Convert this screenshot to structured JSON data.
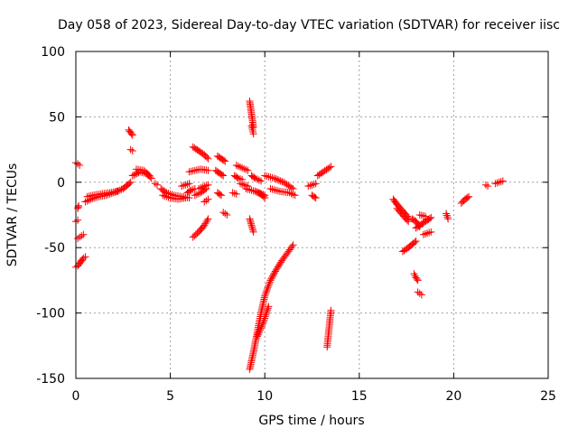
{
  "chart_data": {
    "type": "scatter",
    "title": "Day 058 of 2023, Sidereal Day-to-day VTEC variation (SDTVAR) for receiver iisc",
    "xlabel": "GPS time / hours",
    "ylabel": "SDTVAR / TECUs",
    "xlim": [
      0,
      25
    ],
    "ylim": [
      -150,
      100
    ],
    "xticks": [
      0,
      5,
      10,
      15,
      20,
      25
    ],
    "yticks": [
      -150,
      -100,
      -50,
      0,
      50,
      100
    ],
    "grid": true,
    "legend": "none",
    "marker": "+",
    "color": "#ff0000",
    "segments": [
      {
        "x": [
          0.0,
          0.1,
          0.2
        ],
        "y": [
          15,
          14,
          13
        ]
      },
      {
        "x": [
          0.0,
          0.1,
          0.2,
          0.3
        ],
        "y": [
          -65,
          -64,
          -62,
          -60
        ]
      },
      {
        "x": [
          0.1,
          0.2,
          0.3,
          0.4
        ],
        "y": [
          -43,
          -42,
          -41,
          -40
        ]
      },
      {
        "x": [
          0.0,
          0.1
        ],
        "y": [
          -30,
          -29
        ]
      },
      {
        "x": [
          0.1,
          0.15
        ],
        "y": [
          -20,
          -18
        ]
      },
      {
        "x": [
          0.3,
          0.4,
          0.5
        ],
        "y": [
          -60,
          -58,
          -57
        ]
      },
      {
        "x": [
          0.5,
          0.8,
          1.2,
          1.6,
          2.0,
          2.5,
          2.9
        ],
        "y": [
          -15,
          -13,
          -11,
          -10,
          -8,
          -5,
          0
        ]
      },
      {
        "x": [
          0.6,
          0.9,
          1.3,
          1.8,
          2.2
        ],
        "y": [
          -11,
          -10,
          -9,
          -8,
          -7
        ]
      },
      {
        "x": [
          2.8,
          2.9,
          3.0
        ],
        "y": [
          40,
          38,
          36
        ]
      },
      {
        "x": [
          2.9,
          3.0
        ],
        "y": [
          25,
          24
        ]
      },
      {
        "x": [
          3.0,
          3.4,
          3.8,
          4.0
        ],
        "y": [
          5,
          8,
          6,
          3
        ]
      },
      {
        "x": [
          3.2,
          3.6,
          3.9
        ],
        "y": [
          10,
          9,
          5
        ]
      },
      {
        "x": [
          4.2,
          4.3
        ],
        "y": [
          -1,
          -2
        ]
      },
      {
        "x": [
          4.5,
          4.8,
          5.2,
          5.6,
          6.0
        ],
        "y": [
          -5,
          -8,
          -10,
          -11,
          -12
        ]
      },
      {
        "x": [
          4.6,
          5.0,
          5.4,
          5.8
        ],
        "y": [
          -10,
          -12,
          -13,
          -12
        ]
      },
      {
        "x": [
          5.6,
          5.8,
          6.0
        ],
        "y": [
          -3,
          -2,
          -1
        ]
      },
      {
        "x": [
          5.9,
          6.1,
          6.3
        ],
        "y": [
          -8,
          -6,
          -5
        ]
      },
      {
        "x": [
          6.0,
          6.3,
          6.6,
          7.0
        ],
        "y": [
          8,
          9,
          10,
          9
        ]
      },
      {
        "x": [
          6.2,
          6.5,
          6.8,
          7.0
        ],
        "y": [
          27,
          24,
          21,
          18
        ]
      },
      {
        "x": [
          6.2,
          6.5,
          6.8,
          7.0
        ],
        "y": [
          -42,
          -38,
          -33,
          -28
        ]
      },
      {
        "x": [
          6.3,
          6.6,
          6.9
        ],
        "y": [
          -10,
          -8,
          -5
        ]
      },
      {
        "x": [
          6.5,
          6.8,
          7.0
        ],
        "y": [
          -5,
          -3,
          -2
        ]
      },
      {
        "x": [
          6.8,
          6.9,
          7.0
        ],
        "y": [
          -15,
          -14,
          -13
        ]
      },
      {
        "x": [
          7.5,
          7.7,
          7.9
        ],
        "y": [
          20,
          18,
          16
        ]
      },
      {
        "x": [
          7.4,
          7.6,
          7.8
        ],
        "y": [
          9,
          7,
          5
        ]
      },
      {
        "x": [
          7.5,
          7.7
        ],
        "y": [
          -8,
          -10
        ]
      },
      {
        "x": [
          7.8,
          7.9,
          8.0
        ],
        "y": [
          -23,
          -24,
          -25
        ]
      },
      {
        "x": [
          8.3,
          8.5
        ],
        "y": [
          -8,
          -9
        ]
      },
      {
        "x": [
          8.5,
          8.8,
          9.1
        ],
        "y": [
          13,
          11,
          9
        ]
      },
      {
        "x": [
          8.4,
          8.6,
          8.8
        ],
        "y": [
          5,
          3,
          2
        ]
      },
      {
        "x": [
          8.7,
          8.9,
          9.1
        ],
        "y": [
          -1,
          -2,
          -3
        ]
      },
      {
        "x": [
          9.2,
          9.25,
          9.3,
          9.35,
          9.4
        ],
        "y": [
          62,
          57,
          52,
          47,
          42
        ]
      },
      {
        "x": [
          9.3,
          9.35,
          9.4
        ],
        "y": [
          43,
          40,
          37
        ]
      },
      {
        "x": [
          9.2,
          9.3,
          9.4
        ],
        "y": [
          -28,
          -33,
          -38
        ]
      },
      {
        "x": [
          9.0,
          9.5,
          10.0
        ],
        "y": [
          -5,
          -7,
          -10
        ]
      },
      {
        "x": [
          9.3,
          9.5,
          9.8
        ],
        "y": [
          5,
          3,
          1
        ]
      },
      {
        "x": [
          9.5,
          9.8,
          10.0
        ],
        "y": [
          -7,
          -9,
          -12
        ]
      },
      {
        "x": [
          9.2,
          9.4,
          9.6,
          9.8,
          10.0,
          10.3,
          10.6,
          10.9,
          11.2,
          11.5
        ],
        "y": [
          -143,
          -130,
          -115,
          -100,
          -87,
          -75,
          -67,
          -60,
          -54,
          -48
        ]
      },
      {
        "x": [
          9.6,
          9.9,
          10.2
        ],
        "y": [
          -118,
          -108,
          -95
        ]
      },
      {
        "x": [
          10.0,
          10.5,
          11.0,
          11.5
        ],
        "y": [
          5,
          3,
          0,
          -5
        ]
      },
      {
        "x": [
          10.3,
          10.8,
          11.3,
          11.6
        ],
        "y": [
          -5,
          -7,
          -8,
          -10
        ]
      },
      {
        "x": [
          12.3,
          12.5,
          12.7
        ],
        "y": [
          -3,
          -2,
          -1
        ]
      },
      {
        "x": [
          12.5,
          12.7
        ],
        "y": [
          -10,
          -12
        ]
      },
      {
        "x": [
          12.8,
          13.1,
          13.5
        ],
        "y": [
          5,
          8,
          12
        ]
      },
      {
        "x": [
          13.3,
          13.4,
          13.5
        ],
        "y": [
          -126,
          -112,
          -98
        ]
      },
      {
        "x": [
          16.8,
          17.0,
          17.3,
          17.6
        ],
        "y": [
          -13,
          -17,
          -22,
          -27
        ]
      },
      {
        "x": [
          17.0,
          17.3,
          17.6
        ],
        "y": [
          -20,
          -25,
          -30
        ]
      },
      {
        "x": [
          17.3,
          17.6,
          18.0
        ],
        "y": [
          -53,
          -50,
          -45
        ]
      },
      {
        "x": [
          17.8,
          18.0,
          18.2
        ],
        "y": [
          -28,
          -30,
          -34
        ]
      },
      {
        "x": [
          17.9,
          18.0,
          18.1
        ],
        "y": [
          -70,
          -73,
          -75
        ]
      },
      {
        "x": [
          18.1,
          18.2,
          18.3
        ],
        "y": [
          -84,
          -85,
          -86
        ]
      },
      {
        "x": [
          18.0,
          18.3,
          18.6,
          18.8
        ],
        "y": [
          -35,
          -32,
          -29,
          -27
        ]
      },
      {
        "x": [
          18.4,
          18.6,
          18.8
        ],
        "y": [
          -40,
          -39,
          -38
        ]
      },
      {
        "x": [
          18.2,
          18.5
        ],
        "y": [
          -25,
          -26
        ]
      },
      {
        "x": [
          19.6,
          19.7
        ],
        "y": [
          -24,
          -28
        ]
      },
      {
        "x": [
          20.4,
          20.6,
          20.8
        ],
        "y": [
          -16,
          -13,
          -11
        ]
      },
      {
        "x": [
          21.7,
          21.8
        ],
        "y": [
          -2,
          -3
        ]
      },
      {
        "x": [
          22.2,
          22.4,
          22.6
        ],
        "y": [
          -1,
          0,
          1
        ]
      }
    ]
  }
}
